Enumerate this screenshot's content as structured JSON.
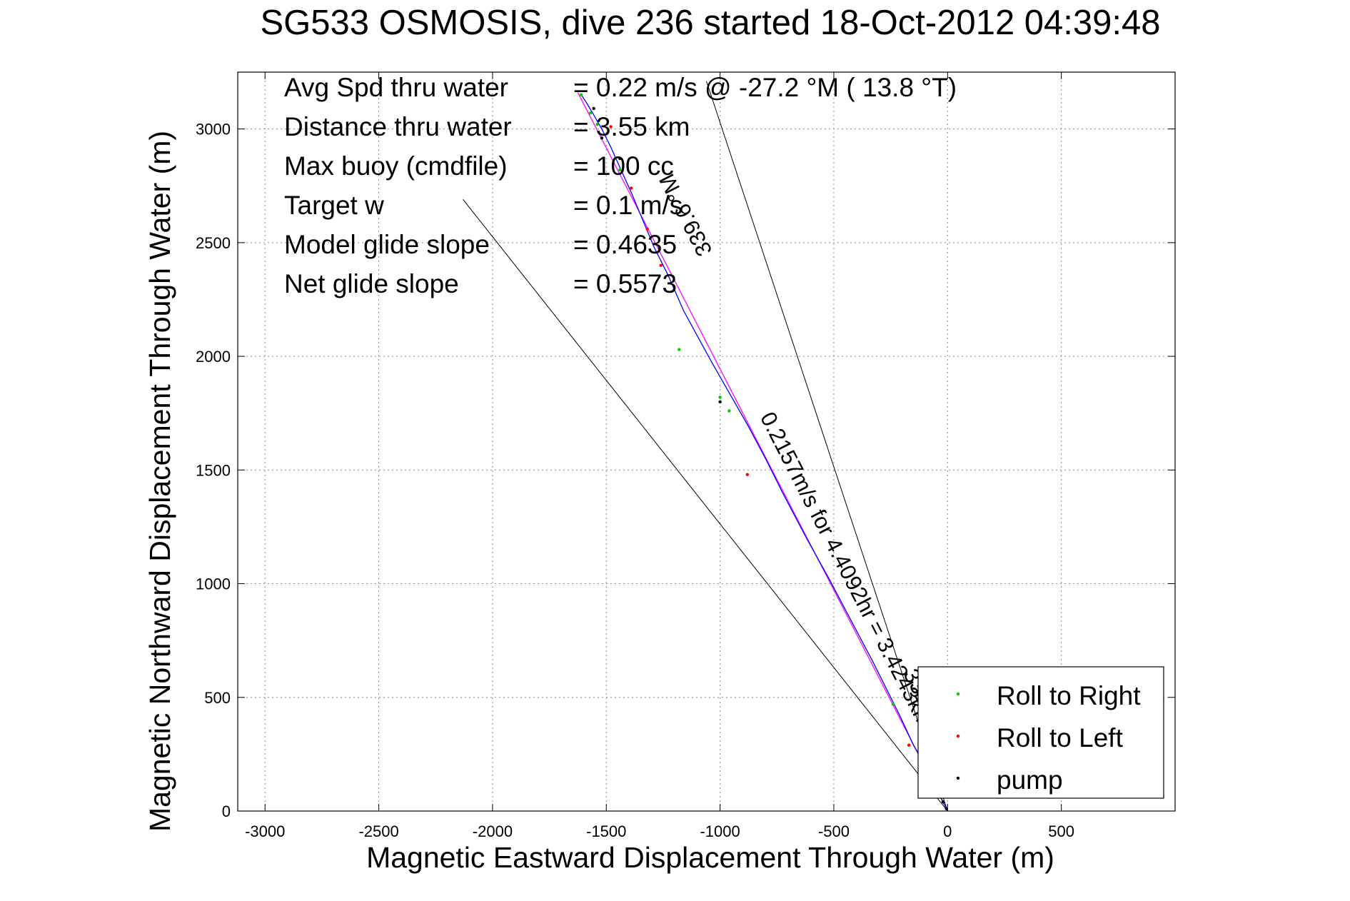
{
  "chart_data": {
    "type": "line",
    "title": "SG533 OSMOSIS, dive 236 started 18-Oct-2012 04:39:48",
    "xlabel": "Magnetic Eastward Displacement Through Water (m)",
    "ylabel": "Magnetic Northward Displacement Through Water (m)",
    "xlim": [
      -3120,
      1000
    ],
    "ylim": [
      0,
      3250
    ],
    "grid": true,
    "legend_position": "bottom-right",
    "x_ticks": [
      -3000,
      -2500,
      -2000,
      -1500,
      -1000,
      -500,
      0,
      500
    ],
    "y_ticks": [
      0,
      500,
      1000,
      1500,
      2000,
      2500,
      3000
    ],
    "x_tick_labels": [
      "-3000",
      "-2500",
      "-2000",
      "-1500",
      "-1000",
      "-500",
      "0",
      "500"
    ],
    "y_tick_labels": [
      "0",
      "500",
      "1000",
      "1500",
      "2000",
      "2500",
      "3000"
    ],
    "colors": {
      "track": "#0000ff",
      "fit": "#ff00ff",
      "roll_right": "#00cc00",
      "roll_left": "#ff0000",
      "pump": "#000000",
      "guide": "#000000"
    },
    "track": {
      "x": [
        0,
        -30,
        -90,
        -150,
        -210,
        -260,
        -330,
        -420,
        -520,
        -620,
        -720,
        -800,
        -880,
        -960,
        -1040,
        -1100,
        -1160,
        -1230,
        -1290,
        -1340,
        -1390,
        -1440,
        -1480,
        -1520,
        -1560,
        -1590,
        -1610
      ],
      "y": [
        0,
        60,
        190,
        290,
        420,
        520,
        660,
        830,
        1020,
        1200,
        1390,
        1550,
        1700,
        1840,
        1980,
        2090,
        2200,
        2360,
        2480,
        2600,
        2720,
        2830,
        2920,
        3000,
        3070,
        3120,
        3150
      ]
    },
    "fit_line": {
      "x": [
        0,
        -1625
      ],
      "y": [
        0,
        3160
      ]
    },
    "guide_lines": [
      {
        "x": [
          0,
          -2130
        ],
        "y": [
          0,
          2690
        ]
      },
      {
        "x": [
          0,
          -1060
        ],
        "y": [
          0,
          3210
        ]
      }
    ],
    "roll_right": {
      "x": [
        -1610,
        -1570,
        -1540,
        -1440,
        -1180,
        -1000,
        -960,
        -240,
        -60
      ],
      "y": [
        3150,
        3070,
        3020,
        2820,
        2030,
        1820,
        1760,
        470,
        130
      ]
    },
    "roll_left": {
      "x": [
        -1480,
        -1390,
        -1320,
        -1260,
        -880,
        -170
      ],
      "y": [
        3010,
        2740,
        2560,
        2400,
        1480,
        290
      ]
    },
    "pump": {
      "x": [
        -1555,
        -1520,
        -1440,
        -1000,
        -20,
        -5
      ],
      "y": [
        3090,
        2960,
        2870,
        1800,
        40,
        10
      ]
    },
    "track_label": "0.2157m/s for 4.4092hr = 3.4243km",
    "heading_label": "331.6 °M",
    "heading_label_2": "339.6 °M",
    "stats": [
      {
        "label": "Avg Spd thru water",
        "value": "=  0.22 m/s @ -27.2 °M ( 13.8 °T)"
      },
      {
        "label": "Distance thru water",
        "value": "=  3.55 km"
      },
      {
        "label": "Max buoy (cmdfile)",
        "value": "= 100 cc"
      },
      {
        "label": "Target w",
        "value": "= 0.1 m/s"
      },
      {
        "label": "Model glide slope",
        "value": "= 0.4635"
      },
      {
        "label": "Net glide slope",
        "value": "= 0.5573"
      }
    ],
    "legend": [
      {
        "label": "Roll to Right",
        "color": "#00cc00"
      },
      {
        "label": "Roll to Left",
        "color": "#ff0000"
      },
      {
        "label": "pump",
        "color": "#000000"
      }
    ]
  }
}
